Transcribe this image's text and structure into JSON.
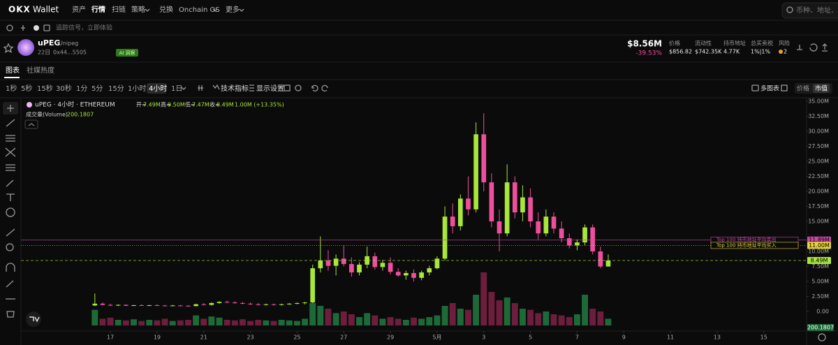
{
  "nav": {
    "logo": "OKX",
    "brand": "Wallet",
    "items": [
      "资产",
      "行情",
      "扫链",
      "策略",
      "兑换",
      "Onchain OS",
      "更多"
    ],
    "active_index": 1,
    "search_placeholder": "币种、地址、DA"
  },
  "subbar": {
    "hint": "追踪信号，立即体验"
  },
  "token": {
    "symbol": "uPEG",
    "name": "Unipeg",
    "age": "22日",
    "address": "0x44...5505",
    "tag": "AI 洞察",
    "market_cap": "$8.56M",
    "change": "-39.53%",
    "stats": [
      {
        "label": "价格",
        "value": "$856.82"
      },
      {
        "label": "流动性",
        "value": "$742.35K"
      },
      {
        "label": "持币地址",
        "value": "4.77K"
      },
      {
        "label": "总买卖税",
        "value": "1%|1%"
      },
      {
        "label": "风险",
        "value": "2"
      }
    ]
  },
  "tabs": {
    "items": [
      "图表",
      "社媒热度"
    ],
    "active_index": 0
  },
  "toolbar": {
    "intervals": [
      "1秒",
      "5秒",
      "15秒",
      "30秒",
      "1分",
      "5分",
      "15分",
      "1小时",
      "4小时",
      "1日"
    ],
    "active_index": 8,
    "indicators": "技术指标",
    "settings": "显示设置",
    "multi": "多图表",
    "modes": [
      "价格",
      "市值"
    ],
    "active_mode": 1
  },
  "chart_data": {
    "type": "candlestick",
    "legend": {
      "symbol": "uPEG · 4小时 · ETHEREUM",
      "ohlc": [
        {
          "key": "开=",
          "value": "7.49M"
        },
        {
          "key": "高=",
          "value": "9.50M"
        },
        {
          "key": "低=",
          "value": "7.47M"
        },
        {
          "key": "收=",
          "value": "8.49M"
        }
      ],
      "change": "1.00M (+13.35%)",
      "volume_name": "成交量(Volume)"
    },
    "volume_last": "200.1807",
    "categories": [
      null,
      null,
      null,
      null,
      null,
      null,
      null,
      null,
      null,
      null,
      null,
      "17",
      null,
      null,
      null,
      null,
      null,
      "19",
      null,
      null,
      null,
      null,
      null,
      "21",
      null,
      null,
      null,
      null,
      null,
      "23",
      null,
      null,
      null,
      null,
      null,
      "25",
      null,
      null,
      null,
      null,
      null,
      "27",
      null,
      null,
      null,
      null,
      null,
      "29",
      null,
      null,
      null,
      null,
      null,
      "5月",
      null,
      null,
      null,
      null,
      null,
      "3",
      null,
      null,
      null,
      null,
      null,
      "5",
      null,
      null,
      null,
      null,
      null,
      "7",
      null,
      null,
      null,
      null,
      null,
      "9",
      null,
      null,
      null,
      null,
      null,
      "11",
      null,
      null,
      null,
      null,
      null,
      "13",
      null,
      null,
      null,
      null,
      null,
      "15",
      null,
      null,
      null,
      null,
      null
    ],
    "open": [
      null,
      null,
      null,
      null,
      null,
      null,
      null,
      null,
      null,
      1.0,
      1.3,
      1.1,
      1.0,
      1.1,
      0.95,
      1.05,
      1.0,
      1.05,
      1.0,
      0.95,
      1.0,
      0.95,
      0.9,
      1.2,
      1.1,
      1.4,
      1.6,
      1.5,
      1.4,
      1.3,
      1.2,
      1.1,
      1.2,
      1.1,
      1.2,
      1.3,
      1.4,
      1.5,
      7.2,
      8.5,
      7.6,
      8.8,
      7.9,
      6.5,
      7.8,
      9.2,
      7.4,
      8.1,
      6.6,
      6.0,
      6.4,
      5.6,
      6.5,
      7.2,
      8.8,
      15.8,
      14.2,
      18.8,
      17.0,
      29.5,
      21.5,
      15.0,
      13.0,
      21.5,
      16.5,
      19.0,
      15.0,
      13.0,
      15.8,
      13.8,
      12.2,
      11.0,
      11.5,
      14.0,
      10.0,
      7.49,
      null,
      null,
      null,
      null,
      null,
      null,
      null,
      null,
      null,
      null,
      null,
      null,
      null,
      null,
      null,
      null,
      null,
      null,
      null,
      null,
      null,
      null,
      null,
      null,
      null
    ],
    "high": [
      null,
      null,
      null,
      null,
      null,
      null,
      null,
      null,
      null,
      3.0,
      1.5,
      1.3,
      1.2,
      1.2,
      1.1,
      1.2,
      1.1,
      1.2,
      1.1,
      1.1,
      1.1,
      1.05,
      1.3,
      1.4,
      1.5,
      1.7,
      1.8,
      1.7,
      1.6,
      1.5,
      1.4,
      1.3,
      1.3,
      1.3,
      1.4,
      1.5,
      1.6,
      7.8,
      12.5,
      10.2,
      9.5,
      11.0,
      9.0,
      8.2,
      10.8,
      9.8,
      8.6,
      9.0,
      7.2,
      6.8,
      7.0,
      6.8,
      7.6,
      9.2,
      17.5,
      18.0,
      19.5,
      22.5,
      31.5,
      33.0,
      23.0,
      17.0,
      24.5,
      22.5,
      21.0,
      20.5,
      16.5,
      17.0,
      16.5,
      15.0,
      13.0,
      12.0,
      14.5,
      14.5,
      10.8,
      9.5,
      null,
      null,
      null,
      null,
      null,
      null,
      null,
      null,
      null,
      null,
      null,
      null,
      null,
      null,
      null,
      null,
      null,
      null,
      null,
      null,
      null,
      null,
      null,
      null,
      null
    ],
    "low": [
      null,
      null,
      null,
      null,
      null,
      null,
      null,
      null,
      null,
      0.9,
      1.0,
      0.9,
      0.9,
      0.9,
      0.9,
      0.95,
      0.9,
      0.95,
      0.85,
      0.9,
      0.9,
      0.85,
      0.85,
      1.0,
      1.0,
      1.3,
      1.4,
      1.3,
      1.2,
      1.1,
      1.0,
      1.0,
      1.0,
      1.0,
      1.1,
      1.2,
      1.2,
      1.4,
      6.5,
      6.8,
      6.0,
      7.5,
      5.8,
      6.0,
      7.2,
      7.0,
      6.8,
      6.2,
      5.8,
      5.3,
      5.0,
      5.2,
      6.0,
      7.0,
      8.5,
      13.0,
      13.5,
      16.0,
      16.5,
      20.0,
      14.0,
      10.0,
      12.5,
      15.5,
      15.0,
      14.0,
      12.0,
      12.5,
      13.0,
      11.5,
      10.5,
      10.2,
      11.0,
      9.5,
      7.2,
      7.47,
      null,
      null,
      null,
      null,
      null,
      null,
      null,
      null,
      null,
      null,
      null,
      null,
      null,
      null,
      null,
      null,
      null,
      null,
      null,
      null,
      null,
      null,
      null,
      null,
      null
    ],
    "close": [
      null,
      null,
      null,
      null,
      null,
      null,
      null,
      null,
      null,
      1.3,
      1.1,
      1.0,
      1.1,
      0.95,
      1.05,
      1.0,
      1.05,
      1.0,
      0.95,
      1.0,
      0.95,
      0.9,
      1.2,
      1.1,
      1.4,
      1.6,
      1.5,
      1.4,
      1.3,
      1.2,
      1.1,
      1.2,
      1.1,
      1.2,
      1.3,
      1.4,
      1.5,
      7.2,
      8.5,
      7.6,
      8.8,
      7.9,
      6.5,
      7.8,
      9.2,
      7.4,
      8.1,
      6.6,
      6.0,
      6.4,
      5.6,
      6.5,
      7.2,
      8.8,
      15.8,
      14.2,
      18.8,
      17.0,
      29.5,
      21.5,
      15.0,
      13.0,
      21.5,
      16.5,
      19.0,
      15.0,
      13.0,
      15.8,
      13.8,
      12.2,
      11.0,
      11.5,
      14.0,
      10.0,
      7.49,
      8.49,
      null,
      null,
      null,
      null,
      null,
      null,
      null,
      null,
      null,
      null,
      null,
      null,
      null,
      null,
      null,
      null,
      null,
      null,
      null,
      null,
      null,
      null,
      null,
      null,
      null
    ],
    "volume": [
      null,
      null,
      null,
      null,
      null,
      null,
      null,
      null,
      null,
      28,
      12,
      14,
      10,
      9,
      11,
      8,
      10,
      9,
      12,
      8,
      9,
      10,
      18,
      12,
      16,
      14,
      10,
      9,
      11,
      8,
      10,
      9,
      8,
      10,
      9,
      8,
      12,
      40,
      35,
      30,
      22,
      25,
      20,
      15,
      22,
      18,
      12,
      15,
      12,
      10,
      14,
      12,
      15,
      18,
      35,
      40,
      30,
      28,
      55,
      95,
      60,
      45,
      50,
      40,
      30,
      28,
      22,
      25,
      20,
      18,
      15,
      20,
      55,
      30,
      25,
      12,
      null,
      null,
      null,
      null,
      null,
      null,
      null,
      null,
      null,
      null,
      null,
      null,
      null,
      null,
      null,
      null,
      null,
      null,
      null,
      null,
      null,
      null,
      null,
      null,
      null
    ],
    "up_color": "#a8e63a",
    "down_color": "#ee4f9c",
    "volume_up_color": "#1d6a38",
    "volume_down_color": "#6c1e3c",
    "ylim": [
      0,
      35
    ],
    "yticks": [
      {
        "value": 35,
        "label": "35.00M"
      },
      {
        "value": 32.5,
        "label": "32.50M"
      },
      {
        "value": 30,
        "label": "30.00M"
      },
      {
        "value": 27.5,
        "label": "27.50M"
      },
      {
        "value": 25,
        "label": "25.00M"
      },
      {
        "value": 22.5,
        "label": "22.50M"
      },
      {
        "value": 20,
        "label": "20.00M"
      },
      {
        "value": 17.5,
        "label": "17.50M"
      },
      {
        "value": 15,
        "label": "15.00M"
      },
      {
        "value": 10,
        "label": "10.00M"
      },
      {
        "value": 7.5,
        "label": "7.50M"
      },
      {
        "value": 5,
        "label": "5.00M"
      },
      {
        "value": 2.5,
        "label": "2.50M"
      },
      {
        "value": 0,
        "label": "0.00"
      }
    ],
    "y2lim": [
      0,
      100
    ],
    "levels": [
      {
        "value": 11.89,
        "label": "11.89M",
        "color": "#c84aa6",
        "style": "solid",
        "annotation": "Top 100 持币地址平均卖出"
      },
      {
        "value": 11.0,
        "label": "11.00M",
        "color": "#e3d23a",
        "style": "dotted",
        "annotation": "Top 100 持币地址平均买入"
      },
      {
        "value": 8.49,
        "label": "8.49M",
        "color": "#a8e63a",
        "style": "dashed"
      }
    ]
  }
}
